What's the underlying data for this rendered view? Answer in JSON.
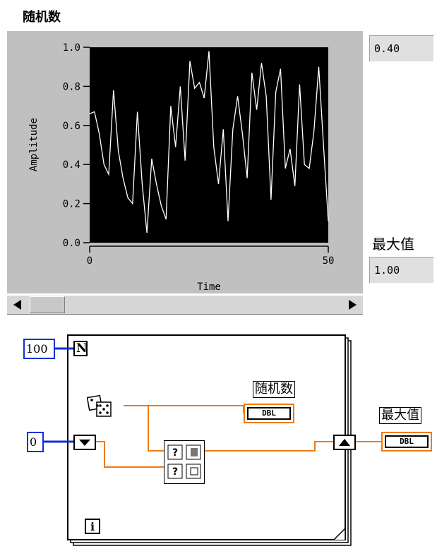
{
  "front_panel": {
    "chart_title": "随机数",
    "value_indicator": "0.40",
    "max_label": "最大值",
    "max_indicator": "1.00"
  },
  "chart_data": {
    "type": "line",
    "xlabel": "Time",
    "ylabel": "Amplitude",
    "xlim": [
      0,
      50
    ],
    "ylim": [
      0.0,
      1.0
    ],
    "x_ticks": [
      "0",
      "50"
    ],
    "y_ticks": [
      "0.0",
      "0.2",
      "0.4",
      "0.6",
      "0.8",
      "1.0"
    ],
    "background": "#000000",
    "line_color": "#ffffff",
    "series": [
      {
        "values": [
          0.66,
          0.67,
          0.56,
          0.4,
          0.35,
          0.78,
          0.47,
          0.33,
          0.23,
          0.2,
          0.67,
          0.3,
          0.05,
          0.43,
          0.3,
          0.19,
          0.12,
          0.7,
          0.49,
          0.8,
          0.42,
          0.93,
          0.79,
          0.82,
          0.74,
          0.98,
          0.49,
          0.3,
          0.58,
          0.11,
          0.58,
          0.75,
          0.56,
          0.33,
          0.87,
          0.68,
          0.92,
          0.75,
          0.22,
          0.77,
          0.89,
          0.38,
          0.48,
          0.29,
          0.81,
          0.4,
          0.38,
          0.57,
          0.9,
          0.5,
          0.11
        ]
      }
    ],
    "scroll_left_icon": "arrow-left-icon",
    "scroll_right_icon": "arrow-right-icon"
  },
  "block_diagram": {
    "count_constant": "100",
    "count_terminal": "N",
    "shift_init_constant": "0",
    "iteration_terminal": "i",
    "indicator_label_random": "随机数",
    "indicator_label_max": "最大值",
    "dbl_label": "DBL",
    "wire_color": "#f07a10",
    "const_wire_color": "#1030d0",
    "random_icon": "dice-icon",
    "maxmin_icon": "max-min-icon"
  }
}
